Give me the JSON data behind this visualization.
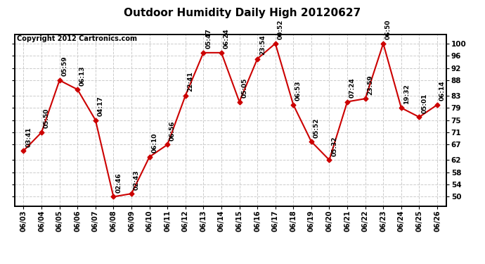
{
  "title": "Outdoor Humidity Daily High 20120627",
  "copyright": "Copyright 2012 Cartronics.com",
  "x_labels": [
    "06/03",
    "06/04",
    "06/05",
    "06/06",
    "06/07",
    "06/08",
    "06/09",
    "06/10",
    "06/11",
    "06/12",
    "06/13",
    "06/14",
    "06/15",
    "06/16",
    "06/17",
    "06/18",
    "06/19",
    "06/20",
    "06/21",
    "06/22",
    "06/23",
    "06/24",
    "06/25",
    "06/26"
  ],
  "y_values": [
    65,
    71,
    88,
    85,
    75,
    50,
    51,
    63,
    67,
    83,
    97,
    97,
    81,
    95,
    100,
    80,
    68,
    62,
    81,
    82,
    100,
    79,
    76,
    80
  ],
  "point_labels": [
    "03:41",
    "05:50",
    "05:59",
    "06:13",
    "04:17",
    "02:46",
    "02:43",
    "06:10",
    "06:56",
    "22:41",
    "05:47",
    "06:24",
    "05:05",
    "23:54",
    "00:52",
    "06:53",
    "05:52",
    "05:32",
    "07:24",
    "23:59",
    "06:50",
    "19:32",
    "05:01",
    "06:14"
  ],
  "line_color": "#cc0000",
  "marker_color": "#cc0000",
  "bg_color": "#ffffff",
  "grid_color": "#cccccc",
  "y_ticks": [
    50,
    54,
    58,
    62,
    67,
    71,
    75,
    79,
    83,
    88,
    92,
    96,
    100
  ],
  "ylim": [
    47,
    103
  ],
  "title_fontsize": 11,
  "label_fontsize": 6.5,
  "copyright_fontsize": 7,
  "xtick_fontsize": 7,
  "ytick_fontsize": 7.5
}
